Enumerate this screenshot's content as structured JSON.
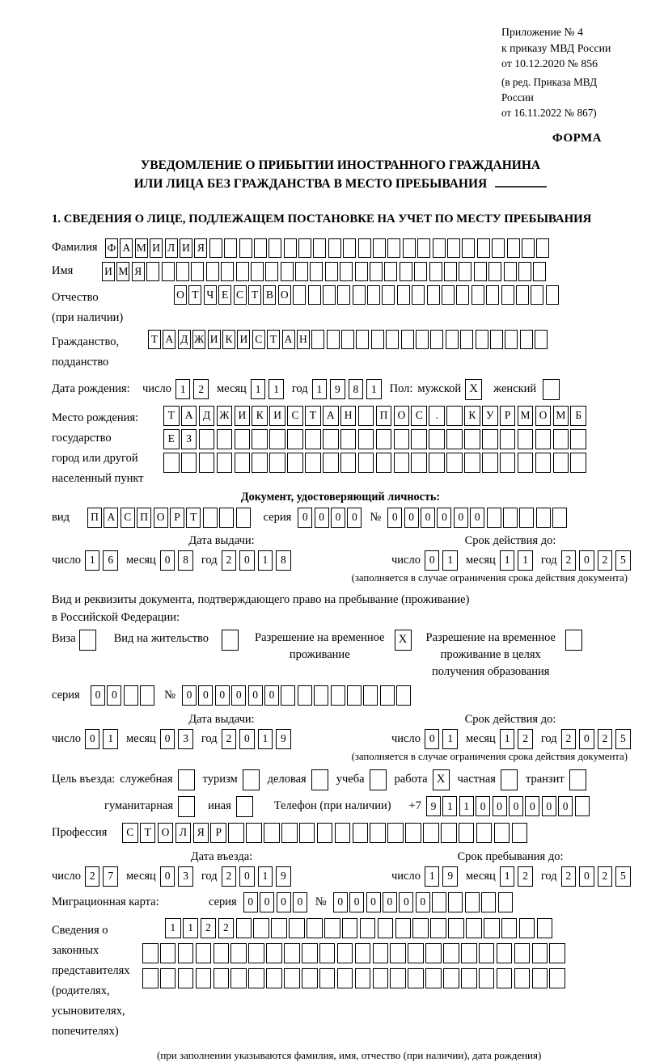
{
  "meta": {
    "appendix_lines": [
      "Приложение № 4",
      "к приказу МВД России",
      "от 10.12.2020 № 856"
    ],
    "revision_lines": [
      "(в ред. Приказа МВД России",
      "от 16.11.2022 № 867)"
    ],
    "forma": "ФОРМА"
  },
  "title": {
    "line1": "УВЕДОМЛЕНИЕ О ПРИБЫТИИ ИНОСТРАННОГО ГРАЖДАНИНА",
    "line2": "ИЛИ ЛИЦА БЕЗ ГРАЖДАНСТВА В МЕСТО ПРЕБЫВАНИЯ"
  },
  "section1": {
    "heading": "1. СВЕДЕНИЯ О ЛИЦЕ, ПОДЛЕЖАЩЕМ ПОСТАНОВКЕ НА УЧЕТ ПО МЕСТУ ПРЕБЫВАНИЯ"
  },
  "labels": {
    "day": "число",
    "month": "месяц",
    "year": "год",
    "series": "серия",
    "number": "№"
  },
  "person": {
    "surname": {
      "label": "Фамилия",
      "value": "ФАМИЛИЯ",
      "len": 30
    },
    "given_name": {
      "label": "Имя",
      "value": "ИМЯ",
      "len": 30
    },
    "patronymic": {
      "label1": "Отчество",
      "label2": "(при наличии)",
      "value": "ОТЧЕСТВО",
      "len": 26
    },
    "citizenship": {
      "label1": "Гражданство,",
      "label2": "подданство",
      "value": "ТАДЖИКИСТАН",
      "len": 27
    },
    "birth_date": {
      "label": "Дата рождения:",
      "day": "12",
      "month": "11",
      "year": "1981"
    },
    "sex": {
      "label": "Пол:",
      "male_label": "мужской",
      "male": "X",
      "female_label": "женский",
      "female": ""
    },
    "birth_place": {
      "label": "Место рождения:",
      "sub1": "государство",
      "sub2": "город или другой",
      "sub3": "населенный пункт",
      "row1": {
        "value": "ТАДЖИКИСТАН ПОС. КУРМОМБ",
        "len": 24
      },
      "row2": {
        "value": "ЕЗ",
        "len": 24
      },
      "row3": {
        "value": "",
        "len": 24
      }
    }
  },
  "identity_doc": {
    "heading": "Документ, удостоверяющий личность:",
    "kind": {
      "label": "вид",
      "value": "ПАСПОРТ",
      "len": 10
    },
    "series": {
      "value": "0000",
      "len": 4
    },
    "number": {
      "value": "000000",
      "len": 11
    },
    "issue": {
      "heading": "Дата выдачи:",
      "day": "16",
      "month": "08",
      "year": "2018"
    },
    "valid": {
      "heading": "Срок действия до:",
      "day": "01",
      "month": "11",
      "year": "2025"
    },
    "note": "(заполняется в случае ограничения срока действия документа)"
  },
  "residence_doc": {
    "heading1": "Вид и реквизиты документа, подтверждающего право на пребывание (проживание)",
    "heading2": "в Российской Федерации:",
    "visa": {
      "label": "Виза",
      "value": ""
    },
    "residence_permit": {
      "label": "Вид на жительство",
      "value": ""
    },
    "temp_permit": {
      "label1": "Разрешение на временное",
      "label2": "проживание",
      "value": "X"
    },
    "temp_permit_edu": {
      "label1": "Разрешение на временное",
      "label2": "проживание в целях",
      "label3": "получения образования",
      "value": ""
    },
    "series": {
      "value": "00",
      "len": 4
    },
    "number": {
      "value": "000000",
      "len": 14
    },
    "issue": {
      "heading": "Дата выдачи:",
      "day": "01",
      "month": "03",
      "year": "2019"
    },
    "valid": {
      "heading": "Срок действия до:",
      "day": "01",
      "month": "12",
      "year": "2025"
    },
    "note": "(заполняется в случае ограничения срока действия документа)"
  },
  "visit": {
    "purpose_label": "Цель въезда:",
    "official": {
      "label": "служебная",
      "value": ""
    },
    "tourism": {
      "label": "туризм",
      "value": ""
    },
    "business": {
      "label": "деловая",
      "value": ""
    },
    "study": {
      "label": "учеба",
      "value": ""
    },
    "work": {
      "label": "работа",
      "value": "X"
    },
    "private": {
      "label": "частная",
      "value": ""
    },
    "transit": {
      "label": "транзит",
      "value": ""
    },
    "humanitarian": {
      "label": "гуманитарная",
      "value": ""
    },
    "other": {
      "label": "иная",
      "value": ""
    },
    "phone": {
      "label": "Телефон (при наличии)",
      "prefix": "+7",
      "value": "911000000",
      "len": 10
    },
    "profession": {
      "label": "Профессия",
      "value": "СТОЛЯР",
      "len": 23
    },
    "entry": {
      "heading": "Дата въезда:",
      "day": "27",
      "month": "03",
      "year": "2019"
    },
    "stay": {
      "heading": "Срок пребывания до:",
      "day": "19",
      "month": "12",
      "year": "2025"
    }
  },
  "migration_card": {
    "label": "Миграционная карта:",
    "series": {
      "value": "0000",
      "len": 4
    },
    "number": {
      "value": "000000",
      "len": 11
    }
  },
  "representatives": {
    "label_lines": [
      "Сведения о",
      "законных",
      "представителях",
      "(родителях,",
      "усыновителях,",
      "попечителях)"
    ],
    "row1": {
      "value": "1122",
      "len": 22
    },
    "row2": {
      "value": "",
      "len": 24
    },
    "row3": {
      "value": "",
      "len": 24
    },
    "note": "(при заполнении указываются фамилия, имя, отчество (при наличии), дата рождения)"
  }
}
